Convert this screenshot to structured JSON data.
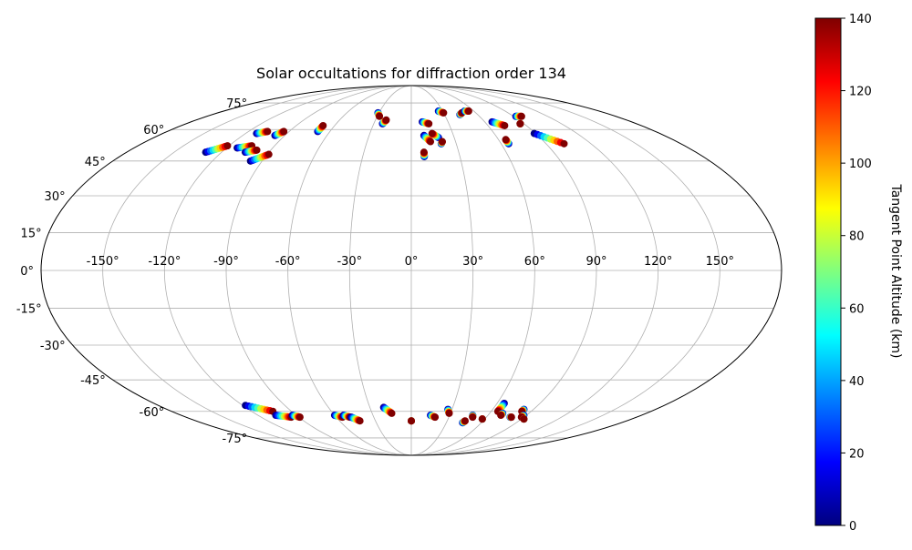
{
  "chart_data": {
    "type": "scatter",
    "projection": "mollweide",
    "title": "Solar occultations for diffraction order 134",
    "colorbar": {
      "label": "Tangent Point Altitude (km)",
      "min": 0,
      "max": 140,
      "ticks": [
        0,
        20,
        40,
        60,
        80,
        100,
        120,
        140
      ],
      "tick_labels": [
        "0",
        "20",
        "40",
        "60",
        "80",
        "100",
        "120",
        "140"
      ],
      "colormap": "jet"
    },
    "lon_ticks": [
      -150,
      -120,
      -90,
      -60,
      -30,
      0,
      30,
      60,
      90,
      120,
      150
    ],
    "lon_tick_labels": [
      "-150°",
      "-120°",
      "-90°",
      "-60°",
      "-30°",
      "0°",
      "30°",
      "60°",
      "90°",
      "120°",
      "150°"
    ],
    "lat_ticks": [
      75,
      60,
      45,
      30,
      15,
      0,
      -15,
      -30,
      -45,
      -60,
      -75
    ],
    "lat_tick_labels": [
      "75°",
      "60°",
      "45°",
      "30°",
      "15°",
      "0°",
      "-15°",
      "-30°",
      "-45°",
      "-60°",
      "-75°"
    ],
    "grid": true,
    "tracks": [
      {
        "start": [
          -130,
          49
        ],
        "end": [
          -121,
          52
        ]
      },
      {
        "start": [
          -112,
          58
        ],
        "end": [
          -106,
          59
        ]
      },
      {
        "start": [
          -113,
          51
        ],
        "end": [
          -105,
          52
        ]
      },
      {
        "start": [
          -105,
          49
        ],
        "end": [
          -99,
          50
        ]
      },
      {
        "start": [
          -97,
          57
        ],
        "end": [
          -94,
          59
        ]
      },
      {
        "start": [
          -97,
          45
        ],
        "end": [
          -89,
          48
        ]
      },
      {
        "start": [
          -69,
          59
        ],
        "end": [
          -69,
          62
        ]
      },
      {
        "start": [
          -31,
          69
        ],
        "end": [
          -28,
          67
        ]
      },
      {
        "start": [
          -23,
          63
        ],
        "end": [
          -21,
          65
        ]
      },
      {
        "start": [
          8,
          47
        ],
        "end": [
          8,
          49
        ]
      },
      {
        "start": [
          9,
          64
        ],
        "end": [
          14,
          63
        ]
      },
      {
        "start": [
          9,
          57
        ],
        "end": [
          13,
          54
        ]
      },
      {
        "start": [
          19,
          56
        ],
        "end": [
          15,
          58
        ]
      },
      {
        "start": [
          20,
          53
        ],
        "end": [
          21,
          54
        ]
      },
      {
        "start": [
          26,
          70
        ],
        "end": [
          30,
          69
        ]
      },
      {
        "start": [
          44,
          68
        ],
        "end": [
          47,
          69
        ]
      },
      {
        "start": [
          51,
          70
        ],
        "end": [
          55,
          70
        ]
      },
      {
        "start": [
          66,
          64
        ],
        "end": [
          73,
          62
        ]
      },
      {
        "start": [
          65,
          53
        ],
        "end": [
          65,
          55
        ]
      },
      {
        "start": [
          92,
          67
        ],
        "end": [
          97,
          67
        ]
      },
      {
        "start": [
          89,
          58
        ],
        "end": [
          102,
          53
        ]
      },
      {
        "start": [
          87,
          63
        ],
        "end": [
          87,
          63
        ]
      },
      {
        "start": [
          -118,
          -57
        ],
        "end": [
          -104,
          -60
        ]
      },
      {
        "start": [
          -106,
          -62
        ],
        "end": [
          -96,
          -63
        ]
      },
      {
        "start": [
          -93,
          -62
        ],
        "end": [
          -89,
          -63
        ]
      },
      {
        "start": [
          -60,
          -62
        ],
        "end": [
          -55,
          -63
        ]
      },
      {
        "start": [
          -53,
          -62
        ],
        "end": [
          -49,
          -63
        ]
      },
      {
        "start": [
          -48,
          -63
        ],
        "end": [
          -43,
          -65
        ]
      },
      {
        "start": [
          -20,
          -58
        ],
        "end": [
          -15,
          -61
        ]
      },
      {
        "start": [
          0,
          -65
        ],
        "end": [
          0,
          -65
        ]
      },
      {
        "start": [
          15,
          -62
        ],
        "end": [
          19,
          -63
        ]
      },
      {
        "start": [
          27,
          -59
        ],
        "end": [
          29,
          -61
        ]
      },
      {
        "start": [
          44,
          -66
        ],
        "end": [
          45,
          -65
        ]
      },
      {
        "start": [
          48,
          -62
        ],
        "end": [
          49,
          -63
        ]
      },
      {
        "start": [
          58,
          -64
        ],
        "end": [
          58,
          -64
        ]
      },
      {
        "start": [
          65,
          -56
        ],
        "end": [
          65,
          -60
        ]
      },
      {
        "start": [
          70,
          -61
        ],
        "end": [
          70,
          -62
        ]
      },
      {
        "start": [
          83,
          -59
        ],
        "end": [
          83,
          -60
        ]
      },
      {
        "start": [
          79,
          -63
        ],
        "end": [
          80,
          -63
        ]
      },
      {
        "start": [
          88,
          -62
        ],
        "end": [
          88,
          -63
        ]
      },
      {
        "start": [
          92,
          -64
        ],
        "end": [
          92,
          -64
        ]
      }
    ]
  }
}
